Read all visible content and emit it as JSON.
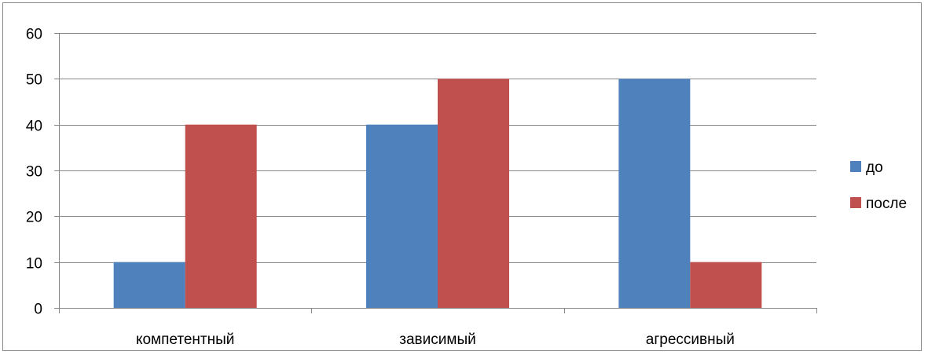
{
  "chart_data": {
    "type": "bar",
    "categories": [
      "компетентный",
      "зависимый",
      "агрессивный"
    ],
    "series": [
      {
        "name": "до",
        "values": [
          10,
          40,
          50
        ],
        "color": "#4F81BD"
      },
      {
        "name": "после",
        "values": [
          40,
          50,
          10
        ],
        "color": "#C0504D"
      }
    ],
    "ylim": [
      0,
      60
    ],
    "yticks": [
      0,
      10,
      20,
      30,
      40,
      50,
      60
    ],
    "grid": true,
    "legend_position": "right",
    "title": "",
    "xlabel": "",
    "ylabel": ""
  },
  "colors": {
    "gridline": "#868686",
    "axis": "#868686"
  }
}
